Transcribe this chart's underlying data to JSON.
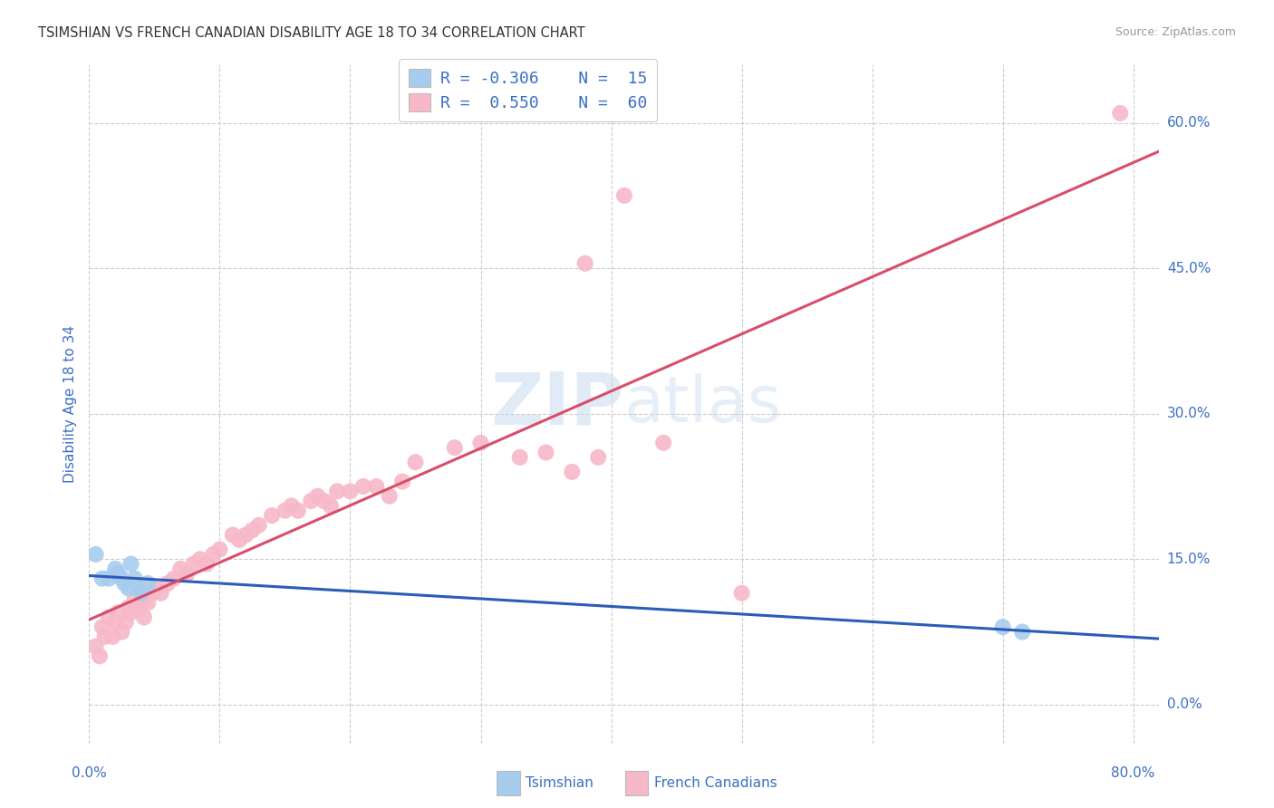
{
  "title": "TSIMSHIAN VS FRENCH CANADIAN DISABILITY AGE 18 TO 34 CORRELATION CHART",
  "source": "Source: ZipAtlas.com",
  "ylabel": "Disability Age 18 to 34",
  "xlim": [
    0.0,
    0.82
  ],
  "ylim": [
    -0.04,
    0.66
  ],
  "ytick_values": [
    0.0,
    0.15,
    0.3,
    0.45,
    0.6
  ],
  "xtick_values": [
    0.0,
    0.1,
    0.2,
    0.3,
    0.4,
    0.5,
    0.6,
    0.7,
    0.8
  ],
  "color_tsimshian": "#A8CCEE",
  "color_french": "#F7B8C8",
  "color_line_blue": "#2B5CB8",
  "color_line_pink": "#D84E6A",
  "color_title": "#333333",
  "color_source": "#999999",
  "color_axis": "#3B6FC4",
  "color_grid": "#CCCCCC",
  "tsimshian_x": [
    0.005,
    0.01,
    0.015,
    0.02,
    0.022,
    0.025,
    0.027,
    0.03,
    0.032,
    0.035,
    0.038,
    0.04,
    0.045,
    0.7,
    0.715
  ],
  "tsimshian_y": [
    0.155,
    0.13,
    0.13,
    0.14,
    0.135,
    0.13,
    0.125,
    0.12,
    0.145,
    0.13,
    0.12,
    0.115,
    0.125,
    0.08,
    0.075
  ],
  "french_x": [
    0.005,
    0.008,
    0.01,
    0.012,
    0.015,
    0.018,
    0.02,
    0.022,
    0.025,
    0.028,
    0.03,
    0.032,
    0.035,
    0.038,
    0.04,
    0.042,
    0.045,
    0.048,
    0.05,
    0.055,
    0.06,
    0.065,
    0.07,
    0.075,
    0.08,
    0.085,
    0.09,
    0.095,
    0.1,
    0.11,
    0.115,
    0.12,
    0.125,
    0.13,
    0.14,
    0.15,
    0.155,
    0.16,
    0.17,
    0.175,
    0.18,
    0.185,
    0.19,
    0.2,
    0.21,
    0.22,
    0.23,
    0.24,
    0.25,
    0.28,
    0.3,
    0.33,
    0.35,
    0.37,
    0.38,
    0.39,
    0.41,
    0.44,
    0.5,
    0.79
  ],
  "french_y": [
    0.06,
    0.05,
    0.08,
    0.07,
    0.09,
    0.07,
    0.085,
    0.095,
    0.075,
    0.085,
    0.1,
    0.095,
    0.11,
    0.1,
    0.105,
    0.09,
    0.105,
    0.115,
    0.12,
    0.115,
    0.125,
    0.13,
    0.14,
    0.135,
    0.145,
    0.15,
    0.145,
    0.155,
    0.16,
    0.175,
    0.17,
    0.175,
    0.18,
    0.185,
    0.195,
    0.2,
    0.205,
    0.2,
    0.21,
    0.215,
    0.21,
    0.205,
    0.22,
    0.22,
    0.225,
    0.225,
    0.215,
    0.23,
    0.25,
    0.265,
    0.27,
    0.255,
    0.26,
    0.24,
    0.455,
    0.255,
    0.525,
    0.27,
    0.115,
    0.61
  ]
}
